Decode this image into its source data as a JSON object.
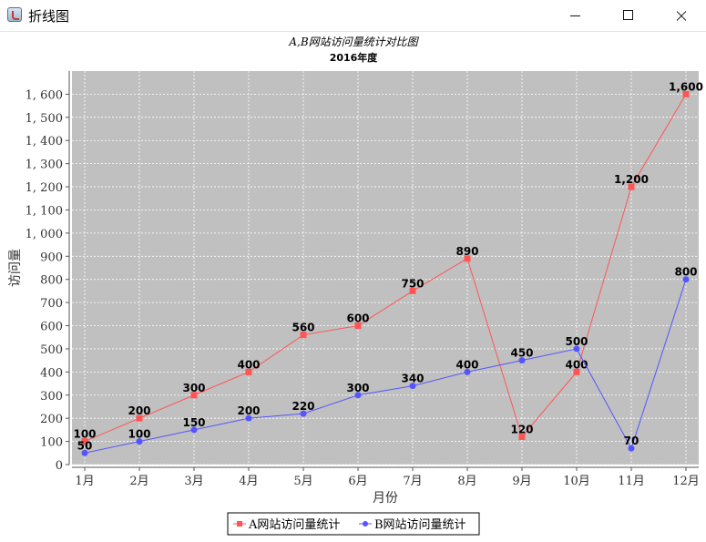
{
  "window": {
    "title": "折线图",
    "icon": "java-icon"
  },
  "chart_data": {
    "type": "line",
    "title": "A,B网站访问量统计对比图",
    "subtitle": "2016年度",
    "xlabel": "月份",
    "ylabel": "访问量",
    "categories": [
      "1月",
      "2月",
      "3月",
      "4月",
      "5月",
      "6月",
      "7月",
      "8月",
      "9月",
      "10月",
      "11月",
      "12月"
    ],
    "ylim": [
      0,
      1700
    ],
    "yticks": [
      0,
      100,
      200,
      300,
      400,
      500,
      600,
      700,
      800,
      900,
      1000,
      1100,
      1200,
      1300,
      1400,
      1500,
      1600
    ],
    "grid": true,
    "legend_position": "bottom",
    "series": [
      {
        "name": "A网站访问量统计",
        "color": "#ff5555",
        "marker": "square",
        "values": [
          100,
          200,
          300,
          400,
          560,
          600,
          750,
          890,
          120,
          400,
          1200,
          1600
        ]
      },
      {
        "name": "B网站访问量统计",
        "color": "#5555ff",
        "marker": "circle",
        "values": [
          50,
          100,
          150,
          200,
          220,
          300,
          340,
          400,
          450,
          500,
          70,
          800
        ]
      }
    ]
  }
}
